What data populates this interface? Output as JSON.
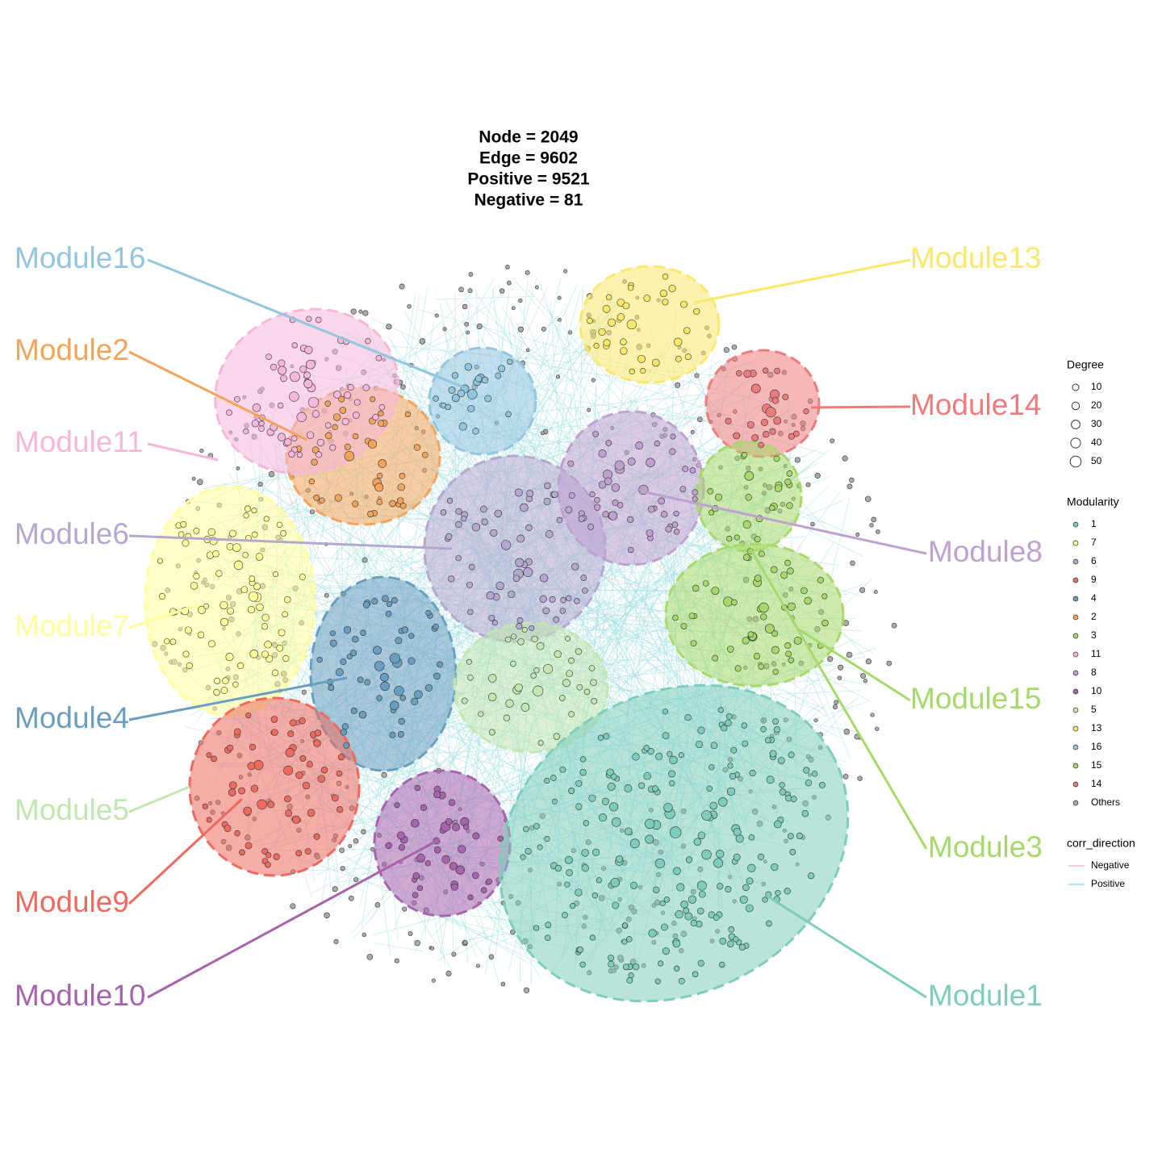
{
  "title": [
    "Node = 2049",
    "Edge = 9602",
    "Positive = 9521",
    "Negative = 81"
  ],
  "modules": [
    {
      "label": "Module16",
      "color": "#92c5de"
    },
    {
      "label": "Module2",
      "color": "#f4a45a"
    },
    {
      "label": "Module11",
      "color": "#f6b7d9"
    },
    {
      "label": "Module6",
      "color": "#b4a7d0"
    },
    {
      "label": "Module7",
      "color": "#ffff99"
    },
    {
      "label": "Module4",
      "color": "#6a9ec0"
    },
    {
      "label": "Module5",
      "color": "#c2e6b0"
    },
    {
      "label": "Module9",
      "color": "#ee6a5f"
    },
    {
      "label": "Module10",
      "color": "#a763ad"
    },
    {
      "label": "Module13",
      "color": "#fbe86a"
    },
    {
      "label": "Module14",
      "color": "#ee7b7b"
    },
    {
      "label": "Module8",
      "color": "#c0a0d0"
    },
    {
      "label": "Module15",
      "color": "#a6d96a"
    },
    {
      "label": "Module3",
      "color": "#a6d96a"
    },
    {
      "label": "Module1",
      "color": "#7ecdbb"
    }
  ],
  "legend": {
    "degree": {
      "title": "Degree",
      "entries": [
        "10",
        "20",
        "30",
        "40",
        "50"
      ]
    },
    "modularity": {
      "title": "Modularity",
      "entries": [
        {
          "label": "1",
          "color": "#7ecdbb"
        },
        {
          "label": "7",
          "color": "#ffff99"
        },
        {
          "label": "6",
          "color": "#b4a7d0"
        },
        {
          "label": "9",
          "color": "#ee6a5f"
        },
        {
          "label": "4",
          "color": "#6a9ec0"
        },
        {
          "label": "2",
          "color": "#f4a45a"
        },
        {
          "label": "3",
          "color": "#a6d96a"
        },
        {
          "label": "11",
          "color": "#f6b7d9"
        },
        {
          "label": "8",
          "color": "#c0a0d0"
        },
        {
          "label": "10",
          "color": "#a763ad"
        },
        {
          "label": "5",
          "color": "#c2e6b0"
        },
        {
          "label": "13",
          "color": "#fbe86a"
        },
        {
          "label": "16",
          "color": "#92c5de"
        },
        {
          "label": "15",
          "color": "#a6d96a"
        },
        {
          "label": "14",
          "color": "#ee7b7b"
        },
        {
          "label": "Others",
          "color": "#aaaaaa"
        }
      ]
    },
    "corr_direction": {
      "title": "corr_direction",
      "entries": [
        {
          "label": "Negative",
          "color": "#f4b8c4"
        },
        {
          "label": "Positive",
          "color": "#9fdde0"
        }
      ]
    }
  }
}
